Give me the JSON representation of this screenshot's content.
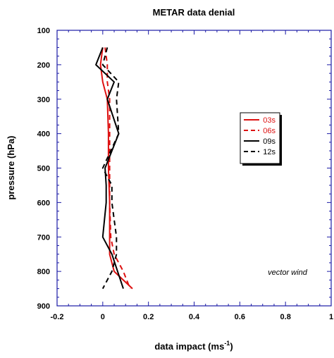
{
  "chart_data": {
    "type": "line",
    "title": "METAR data denial",
    "xlabel": "data impact (ms",
    "xlabel_sup": "-1",
    "xlabel_tail": ")",
    "ylabel": "pressure (hPa)",
    "xlim": [
      -0.2,
      1
    ],
    "ylim": [
      900,
      100
    ],
    "x_ticks": [
      -0.2,
      0,
      0.2,
      0.4,
      0.6,
      0.8,
      1
    ],
    "x_tick_labels": [
      "-0.2",
      "0",
      "0.2",
      "0.4",
      "0.6",
      "0.8",
      "1"
    ],
    "y_ticks": [
      100,
      200,
      300,
      400,
      500,
      600,
      700,
      800,
      900
    ],
    "y_tick_labels": [
      "100",
      "200",
      "300",
      "400",
      "500",
      "600",
      "700",
      "800",
      "900"
    ],
    "y_reversed": true,
    "grid": false,
    "legend_position": "right",
    "annotation": "vector wind",
    "series": [
      {
        "name": "03s",
        "color": "#dd1111",
        "dash": "solid",
        "x": [
          0.0,
          -0.01,
          0.0,
          0.02,
          0.025,
          0.025,
          0.03,
          0.03,
          0.03,
          0.05,
          0.13
        ],
        "y": [
          150,
          200,
          250,
          300,
          400,
          500,
          600,
          700,
          750,
          800,
          850
        ]
      },
      {
        "name": "06s",
        "color": "#dd1111",
        "dash": "dashed",
        "x": [
          0.01,
          0.02,
          0.02,
          0.03,
          0.03,
          0.03,
          0.03,
          0.035,
          0.05,
          0.09,
          0.12
        ],
        "y": [
          150,
          200,
          250,
          300,
          400,
          500,
          600,
          700,
          750,
          800,
          850
        ]
      },
      {
        "name": "09s",
        "color": "#000000",
        "dash": "solid",
        "x": [
          0.0,
          -0.03,
          0.05,
          0.02,
          0.07,
          0.01,
          0.015,
          0.015,
          0.0,
          0.04,
          0.09
        ],
        "y": [
          150,
          200,
          250,
          300,
          400,
          500,
          550,
          600,
          700,
          750,
          850
        ]
      },
      {
        "name": "12s",
        "color": "#000000",
        "dash": "dashed",
        "x": [
          0.02,
          0.0,
          0.07,
          0.06,
          0.07,
          0.0,
          0.04,
          0.04,
          0.06,
          0.06,
          0.04,
          0.0
        ],
        "y": [
          150,
          200,
          250,
          300,
          400,
          500,
          550,
          600,
          700,
          750,
          800,
          850
        ]
      }
    ]
  }
}
